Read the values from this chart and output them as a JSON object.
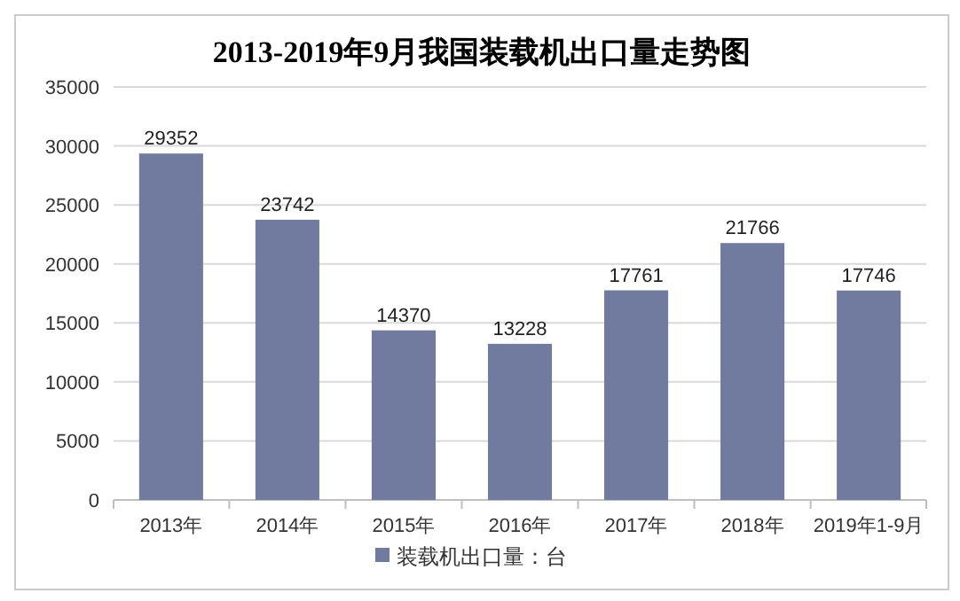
{
  "chart_data": {
    "type": "bar",
    "title": "2013-2019年9月我国装载机出口量走势图",
    "categories": [
      "2013年",
      "2014年",
      "2015年",
      "2016年",
      "2017年",
      "2018年",
      "2019年1-9月"
    ],
    "series": [
      {
        "name": "装载机出口量：台",
        "color": "#717ba0",
        "values": [
          29352,
          23742,
          14370,
          13228,
          17761,
          21766,
          17746
        ]
      }
    ],
    "ylim": [
      0,
      35000
    ],
    "yticks": [
      0,
      5000,
      10000,
      15000,
      20000,
      25000,
      30000,
      35000
    ],
    "grid": "y",
    "legend": "bottom",
    "data_labels": true
  }
}
